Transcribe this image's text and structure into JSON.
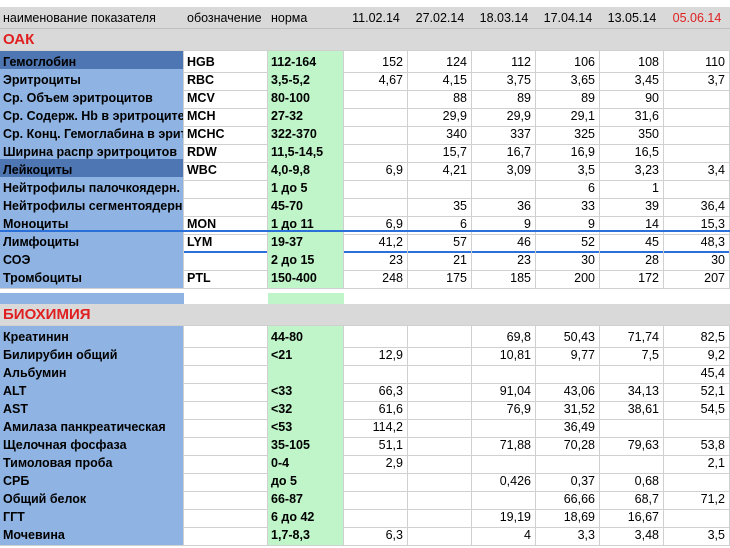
{
  "header": {
    "col_name": "наименование показателя",
    "col_code": "обозначение",
    "col_norm": "норма",
    "dates": [
      "11.02.14",
      "27.02.14",
      "18.03.14",
      "17.04.14",
      "13.05.14",
      "05.06.14"
    ]
  },
  "section_oak": "ОАК",
  "oak_rows": [
    {
      "name": "Гемоглобин",
      "code": "HGB",
      "norm": "112-164",
      "v": [
        "152",
        "124",
        "112",
        "106",
        "108",
        "110"
      ]
    },
    {
      "name": "Эритроциты",
      "code": "RBC",
      "norm": "3,5-5,2",
      "v": [
        "4,67",
        "4,15",
        "3,75",
        "3,65",
        "3,45",
        "3,7"
      ]
    },
    {
      "name": "Ср. Объем эритроцитов",
      "code": "MCV",
      "norm": "80-100",
      "v": [
        "",
        "88",
        "89",
        "89",
        "90",
        ""
      ]
    },
    {
      "name": "Ср. Содерж. Hb в эритроците",
      "code": "MCH",
      "norm": "27-32",
      "v": [
        "",
        "29,9",
        "29,9",
        "29,1",
        "31,6",
        ""
      ]
    },
    {
      "name": "Ср. Конц. Гемоглабина в эрит",
      "code": "MCHC",
      "norm": "322-370",
      "v": [
        "",
        "340",
        "337",
        "325",
        "350",
        ""
      ]
    },
    {
      "name": "Ширина распр эритроцитов",
      "code": "RDW",
      "norm": "11,5-14,5",
      "v": [
        "",
        "15,7",
        "16,7",
        "16,9",
        "16,5",
        ""
      ]
    },
    {
      "name": "Лейкоциты",
      "code": "WBC",
      "norm": "4,0-9,8",
      "v": [
        "6,9",
        "4,21",
        "3,09",
        "3,5",
        "3,23",
        "3,4"
      ]
    },
    {
      "name": "Нейтрофилы палочкоядерн.",
      "code": "",
      "norm": "1 до 5",
      "v": [
        "",
        "",
        "",
        "6",
        "1",
        ""
      ]
    },
    {
      "name": "Нейтрофилы сегментоядерн.",
      "code": "",
      "norm": "45-70",
      "v": [
        "",
        "35",
        "36",
        "33",
        "39",
        "36,4"
      ]
    },
    {
      "name": "Моноциты",
      "code": "MON",
      "norm": "1 до 11",
      "v": [
        "6,9",
        "6",
        "9",
        "9",
        "14",
        "15,3"
      ]
    },
    {
      "name": "Лимфоциты",
      "code": "LYM",
      "norm": "19-37",
      "v": [
        "41,2",
        "57",
        "46",
        "52",
        "45",
        "48,3"
      ]
    },
    {
      "name": "СОЭ",
      "code": "",
      "norm": "2 до 15",
      "v": [
        "23",
        "21",
        "23",
        "30",
        "28",
        "30"
      ]
    },
    {
      "name": "Тромбоциты",
      "code": "PTL",
      "norm": "150-400",
      "v": [
        "248",
        "175",
        "185",
        "200",
        "172",
        "207"
      ]
    }
  ],
  "section_bio": "БИОХИМИЯ",
  "bio_rows": [
    {
      "name": "Креатинин",
      "code": "",
      "norm": "44-80",
      "v": [
        "",
        "",
        "69,8",
        "50,43",
        "71,74",
        "82,5"
      ]
    },
    {
      "name": "Билирубин общий",
      "code": "",
      "norm": "<21",
      "v": [
        "12,9",
        "",
        "10,81",
        "9,77",
        "7,5",
        "9,2"
      ]
    },
    {
      "name": "Альбумин",
      "code": "",
      "norm": "",
      "v": [
        "",
        "",
        "",
        "",
        "",
        "45,4"
      ]
    },
    {
      "name": "ALT",
      "code": "",
      "norm": "<33",
      "v": [
        "66,3",
        "",
        "91,04",
        "43,06",
        "34,13",
        "52,1"
      ]
    },
    {
      "name": "AST",
      "code": "",
      "norm": "<32",
      "v": [
        "61,6",
        "",
        "76,9",
        "31,52",
        "38,61",
        "54,5"
      ]
    },
    {
      "name": "Амилаза панкреатическая",
      "code": "",
      "norm": "<53",
      "v": [
        "114,2",
        "",
        "",
        "36,49",
        "",
        ""
      ]
    },
    {
      "name": "Щелочная фосфаза",
      "code": "",
      "norm": "35-105",
      "v": [
        "51,1",
        "",
        "71,88",
        "70,28",
        "79,63",
        "53,8"
      ]
    },
    {
      "name": "Тимоловая проба",
      "code": "",
      "norm": "0-4",
      "v": [
        "2,9",
        "",
        "",
        "",
        "",
        "2,1"
      ]
    },
    {
      "name": "СРБ",
      "code": "",
      "norm": "до 5",
      "v": [
        "",
        "",
        "0,426",
        "0,37",
        "0,68",
        ""
      ]
    },
    {
      "name": "Общий белок",
      "code": "",
      "norm": "66-87",
      "v": [
        "",
        "",
        "",
        "66,66",
        "68,7",
        "71,2"
      ]
    },
    {
      "name": "ГГТ",
      "code": "",
      "norm": "6 до 42",
      "v": [
        "",
        "",
        "19,19",
        "18,69",
        "16,67",
        ""
      ]
    },
    {
      "name": "Мочевина",
      "code": "",
      "norm": "1,7-8,3",
      "v": [
        "6,3",
        "",
        "4",
        "3,3",
        "3,48",
        "3,5"
      ]
    }
  ]
}
